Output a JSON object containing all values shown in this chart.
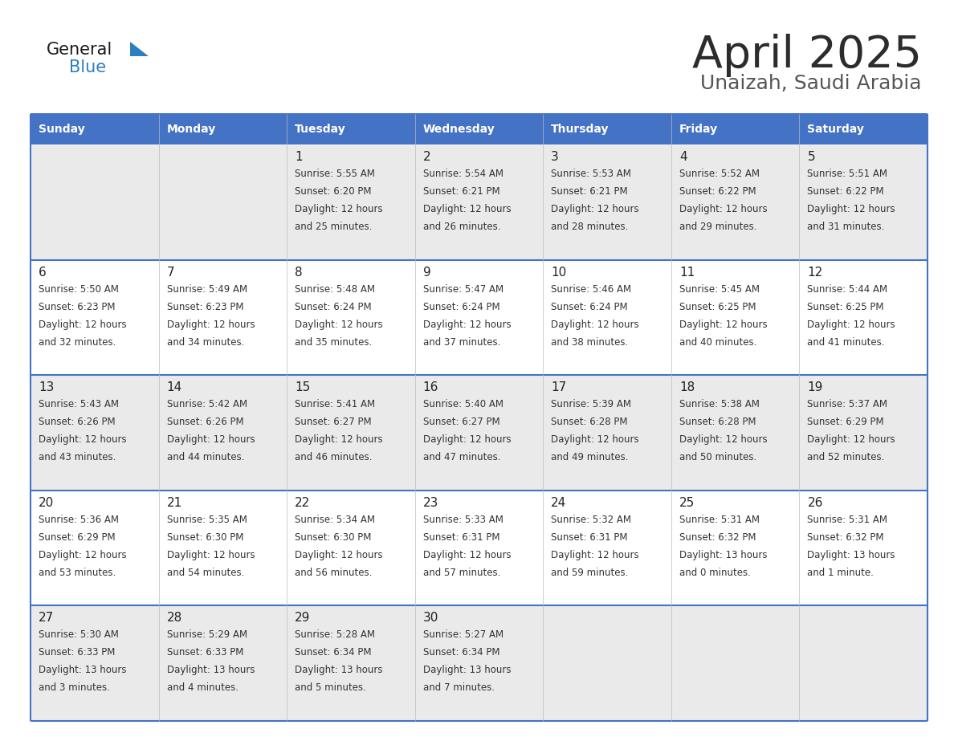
{
  "title": "April 2025",
  "subtitle": "Unaizah, Saudi Arabia",
  "days_of_week": [
    "Sunday",
    "Monday",
    "Tuesday",
    "Wednesday",
    "Thursday",
    "Friday",
    "Saturday"
  ],
  "header_bg": "#4472C4",
  "header_text_color": "#FFFFFF",
  "cell_bg_odd": "#EAEAEA",
  "cell_bg_even": "#FFFFFF",
  "row_border_color": "#4472C4",
  "outer_border_color": "#4472C4",
  "title_color": "#2C2C2C",
  "subtitle_color": "#555555",
  "text_color": "#333333",
  "day_num_color": "#222222",
  "logo_general_color": "#1A1A1A",
  "logo_blue_color": "#2B7FC1",
  "logo_triangle_color": "#2B7FC1",
  "calendar_data": [
    [
      {
        "day": null,
        "sunrise": null,
        "sunset": null,
        "daylight": null
      },
      {
        "day": null,
        "sunrise": null,
        "sunset": null,
        "daylight": null
      },
      {
        "day": 1,
        "sunrise": "5:55 AM",
        "sunset": "6:20 PM",
        "daylight": "12 hours\nand 25 minutes."
      },
      {
        "day": 2,
        "sunrise": "5:54 AM",
        "sunset": "6:21 PM",
        "daylight": "12 hours\nand 26 minutes."
      },
      {
        "day": 3,
        "sunrise": "5:53 AM",
        "sunset": "6:21 PM",
        "daylight": "12 hours\nand 28 minutes."
      },
      {
        "day": 4,
        "sunrise": "5:52 AM",
        "sunset": "6:22 PM",
        "daylight": "12 hours\nand 29 minutes."
      },
      {
        "day": 5,
        "sunrise": "5:51 AM",
        "sunset": "6:22 PM",
        "daylight": "12 hours\nand 31 minutes."
      }
    ],
    [
      {
        "day": 6,
        "sunrise": "5:50 AM",
        "sunset": "6:23 PM",
        "daylight": "12 hours\nand 32 minutes."
      },
      {
        "day": 7,
        "sunrise": "5:49 AM",
        "sunset": "6:23 PM",
        "daylight": "12 hours\nand 34 minutes."
      },
      {
        "day": 8,
        "sunrise": "5:48 AM",
        "sunset": "6:24 PM",
        "daylight": "12 hours\nand 35 minutes."
      },
      {
        "day": 9,
        "sunrise": "5:47 AM",
        "sunset": "6:24 PM",
        "daylight": "12 hours\nand 37 minutes."
      },
      {
        "day": 10,
        "sunrise": "5:46 AM",
        "sunset": "6:24 PM",
        "daylight": "12 hours\nand 38 minutes."
      },
      {
        "day": 11,
        "sunrise": "5:45 AM",
        "sunset": "6:25 PM",
        "daylight": "12 hours\nand 40 minutes."
      },
      {
        "day": 12,
        "sunrise": "5:44 AM",
        "sunset": "6:25 PM",
        "daylight": "12 hours\nand 41 minutes."
      }
    ],
    [
      {
        "day": 13,
        "sunrise": "5:43 AM",
        "sunset": "6:26 PM",
        "daylight": "12 hours\nand 43 minutes."
      },
      {
        "day": 14,
        "sunrise": "5:42 AM",
        "sunset": "6:26 PM",
        "daylight": "12 hours\nand 44 minutes."
      },
      {
        "day": 15,
        "sunrise": "5:41 AM",
        "sunset": "6:27 PM",
        "daylight": "12 hours\nand 46 minutes."
      },
      {
        "day": 16,
        "sunrise": "5:40 AM",
        "sunset": "6:27 PM",
        "daylight": "12 hours\nand 47 minutes."
      },
      {
        "day": 17,
        "sunrise": "5:39 AM",
        "sunset": "6:28 PM",
        "daylight": "12 hours\nand 49 minutes."
      },
      {
        "day": 18,
        "sunrise": "5:38 AM",
        "sunset": "6:28 PM",
        "daylight": "12 hours\nand 50 minutes."
      },
      {
        "day": 19,
        "sunrise": "5:37 AM",
        "sunset": "6:29 PM",
        "daylight": "12 hours\nand 52 minutes."
      }
    ],
    [
      {
        "day": 20,
        "sunrise": "5:36 AM",
        "sunset": "6:29 PM",
        "daylight": "12 hours\nand 53 minutes."
      },
      {
        "day": 21,
        "sunrise": "5:35 AM",
        "sunset": "6:30 PM",
        "daylight": "12 hours\nand 54 minutes."
      },
      {
        "day": 22,
        "sunrise": "5:34 AM",
        "sunset": "6:30 PM",
        "daylight": "12 hours\nand 56 minutes."
      },
      {
        "day": 23,
        "sunrise": "5:33 AM",
        "sunset": "6:31 PM",
        "daylight": "12 hours\nand 57 minutes."
      },
      {
        "day": 24,
        "sunrise": "5:32 AM",
        "sunset": "6:31 PM",
        "daylight": "12 hours\nand 59 minutes."
      },
      {
        "day": 25,
        "sunrise": "5:31 AM",
        "sunset": "6:32 PM",
        "daylight": "13 hours\nand 0 minutes."
      },
      {
        "day": 26,
        "sunrise": "5:31 AM",
        "sunset": "6:32 PM",
        "daylight": "13 hours\nand 1 minute."
      }
    ],
    [
      {
        "day": 27,
        "sunrise": "5:30 AM",
        "sunset": "6:33 PM",
        "daylight": "13 hours\nand 3 minutes."
      },
      {
        "day": 28,
        "sunrise": "5:29 AM",
        "sunset": "6:33 PM",
        "daylight": "13 hours\nand 4 minutes."
      },
      {
        "day": 29,
        "sunrise": "5:28 AM",
        "sunset": "6:34 PM",
        "daylight": "13 hours\nand 5 minutes."
      },
      {
        "day": 30,
        "sunrise": "5:27 AM",
        "sunset": "6:34 PM",
        "daylight": "13 hours\nand 7 minutes."
      },
      {
        "day": null,
        "sunrise": null,
        "sunset": null,
        "daylight": null
      },
      {
        "day": null,
        "sunrise": null,
        "sunset": null,
        "daylight": null
      },
      {
        "day": null,
        "sunrise": null,
        "sunset": null,
        "daylight": null
      }
    ]
  ]
}
